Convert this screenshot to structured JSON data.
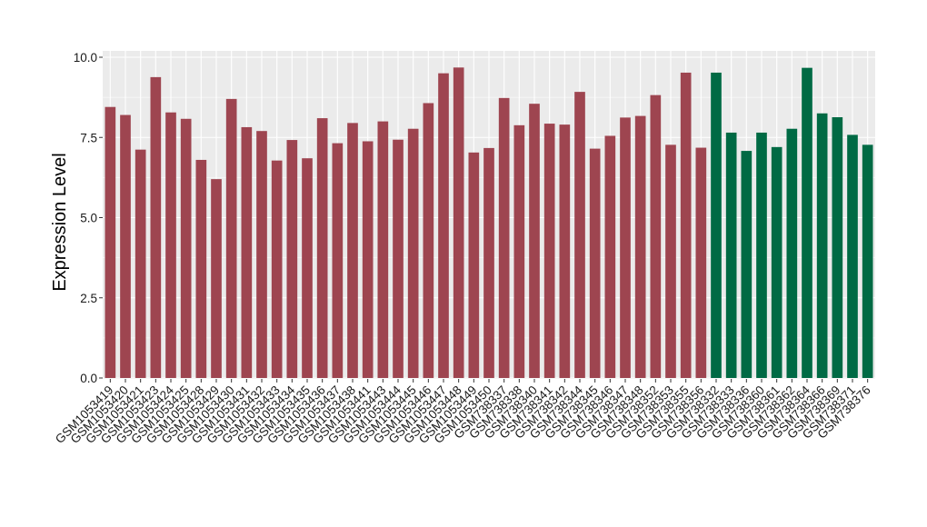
{
  "chart_data": {
    "type": "bar",
    "title": "",
    "xlabel": "",
    "ylabel": "Expression Level",
    "ylim": [
      0,
      10
    ],
    "yticks": [
      "0.0",
      "2.5",
      "5.0",
      "7.5",
      "10.0"
    ],
    "grid": true,
    "legend": "none",
    "panel_background": "#ebebeb",
    "colors": {
      "group1": "#9e4550",
      "group2": "#006a44"
    },
    "categories": [
      "GSM1053419",
      "GSM1053420",
      "GSM1053421",
      "GSM1053423",
      "GSM1053424",
      "GSM1053425",
      "GSM1053428",
      "GSM1053429",
      "GSM1053430",
      "GSM1053431",
      "GSM1053432",
      "GSM1053433",
      "GSM1053434",
      "GSM1053435",
      "GSM1053436",
      "GSM1053437",
      "GSM1053438",
      "GSM1053441",
      "GSM1053443",
      "GSM1053444",
      "GSM1053445",
      "GSM1053446",
      "GSM1053447",
      "GSM1053448",
      "GSM1053449",
      "GSM1053450",
      "GSM738337",
      "GSM738338",
      "GSM738340",
      "GSM738341",
      "GSM738342",
      "GSM738344",
      "GSM738345",
      "GSM738346",
      "GSM738347",
      "GSM738348",
      "GSM738352",
      "GSM738353",
      "GSM738355",
      "GSM738356",
      "GSM738332",
      "GSM738333",
      "GSM738336",
      "GSM738360",
      "GSM738361",
      "GSM738362",
      "GSM738364",
      "GSM738366",
      "GSM738369",
      "GSM738371",
      "GSM738376"
    ],
    "values": [
      8.45,
      8.2,
      7.12,
      9.38,
      8.28,
      8.08,
      6.8,
      6.2,
      8.7,
      7.82,
      7.7,
      6.78,
      7.42,
      6.85,
      8.1,
      7.32,
      7.95,
      7.38,
      8.0,
      7.43,
      7.77,
      8.57,
      9.5,
      9.68,
      7.03,
      7.17,
      8.73,
      7.88,
      8.55,
      7.93,
      7.9,
      8.92,
      7.15,
      7.55,
      8.12,
      8.17,
      8.82,
      7.27,
      9.52,
      7.18,
      9.52,
      7.65,
      7.08,
      7.65,
      7.2,
      7.77,
      9.67,
      8.25,
      8.13,
      7.58,
      7.27
    ],
    "groups": [
      1,
      1,
      1,
      1,
      1,
      1,
      1,
      1,
      1,
      1,
      1,
      1,
      1,
      1,
      1,
      1,
      1,
      1,
      1,
      1,
      1,
      1,
      1,
      1,
      1,
      1,
      1,
      1,
      1,
      1,
      1,
      1,
      1,
      1,
      1,
      1,
      1,
      1,
      1,
      1,
      2,
      2,
      2,
      2,
      2,
      2,
      2,
      2,
      2,
      2,
      2
    ]
  }
}
